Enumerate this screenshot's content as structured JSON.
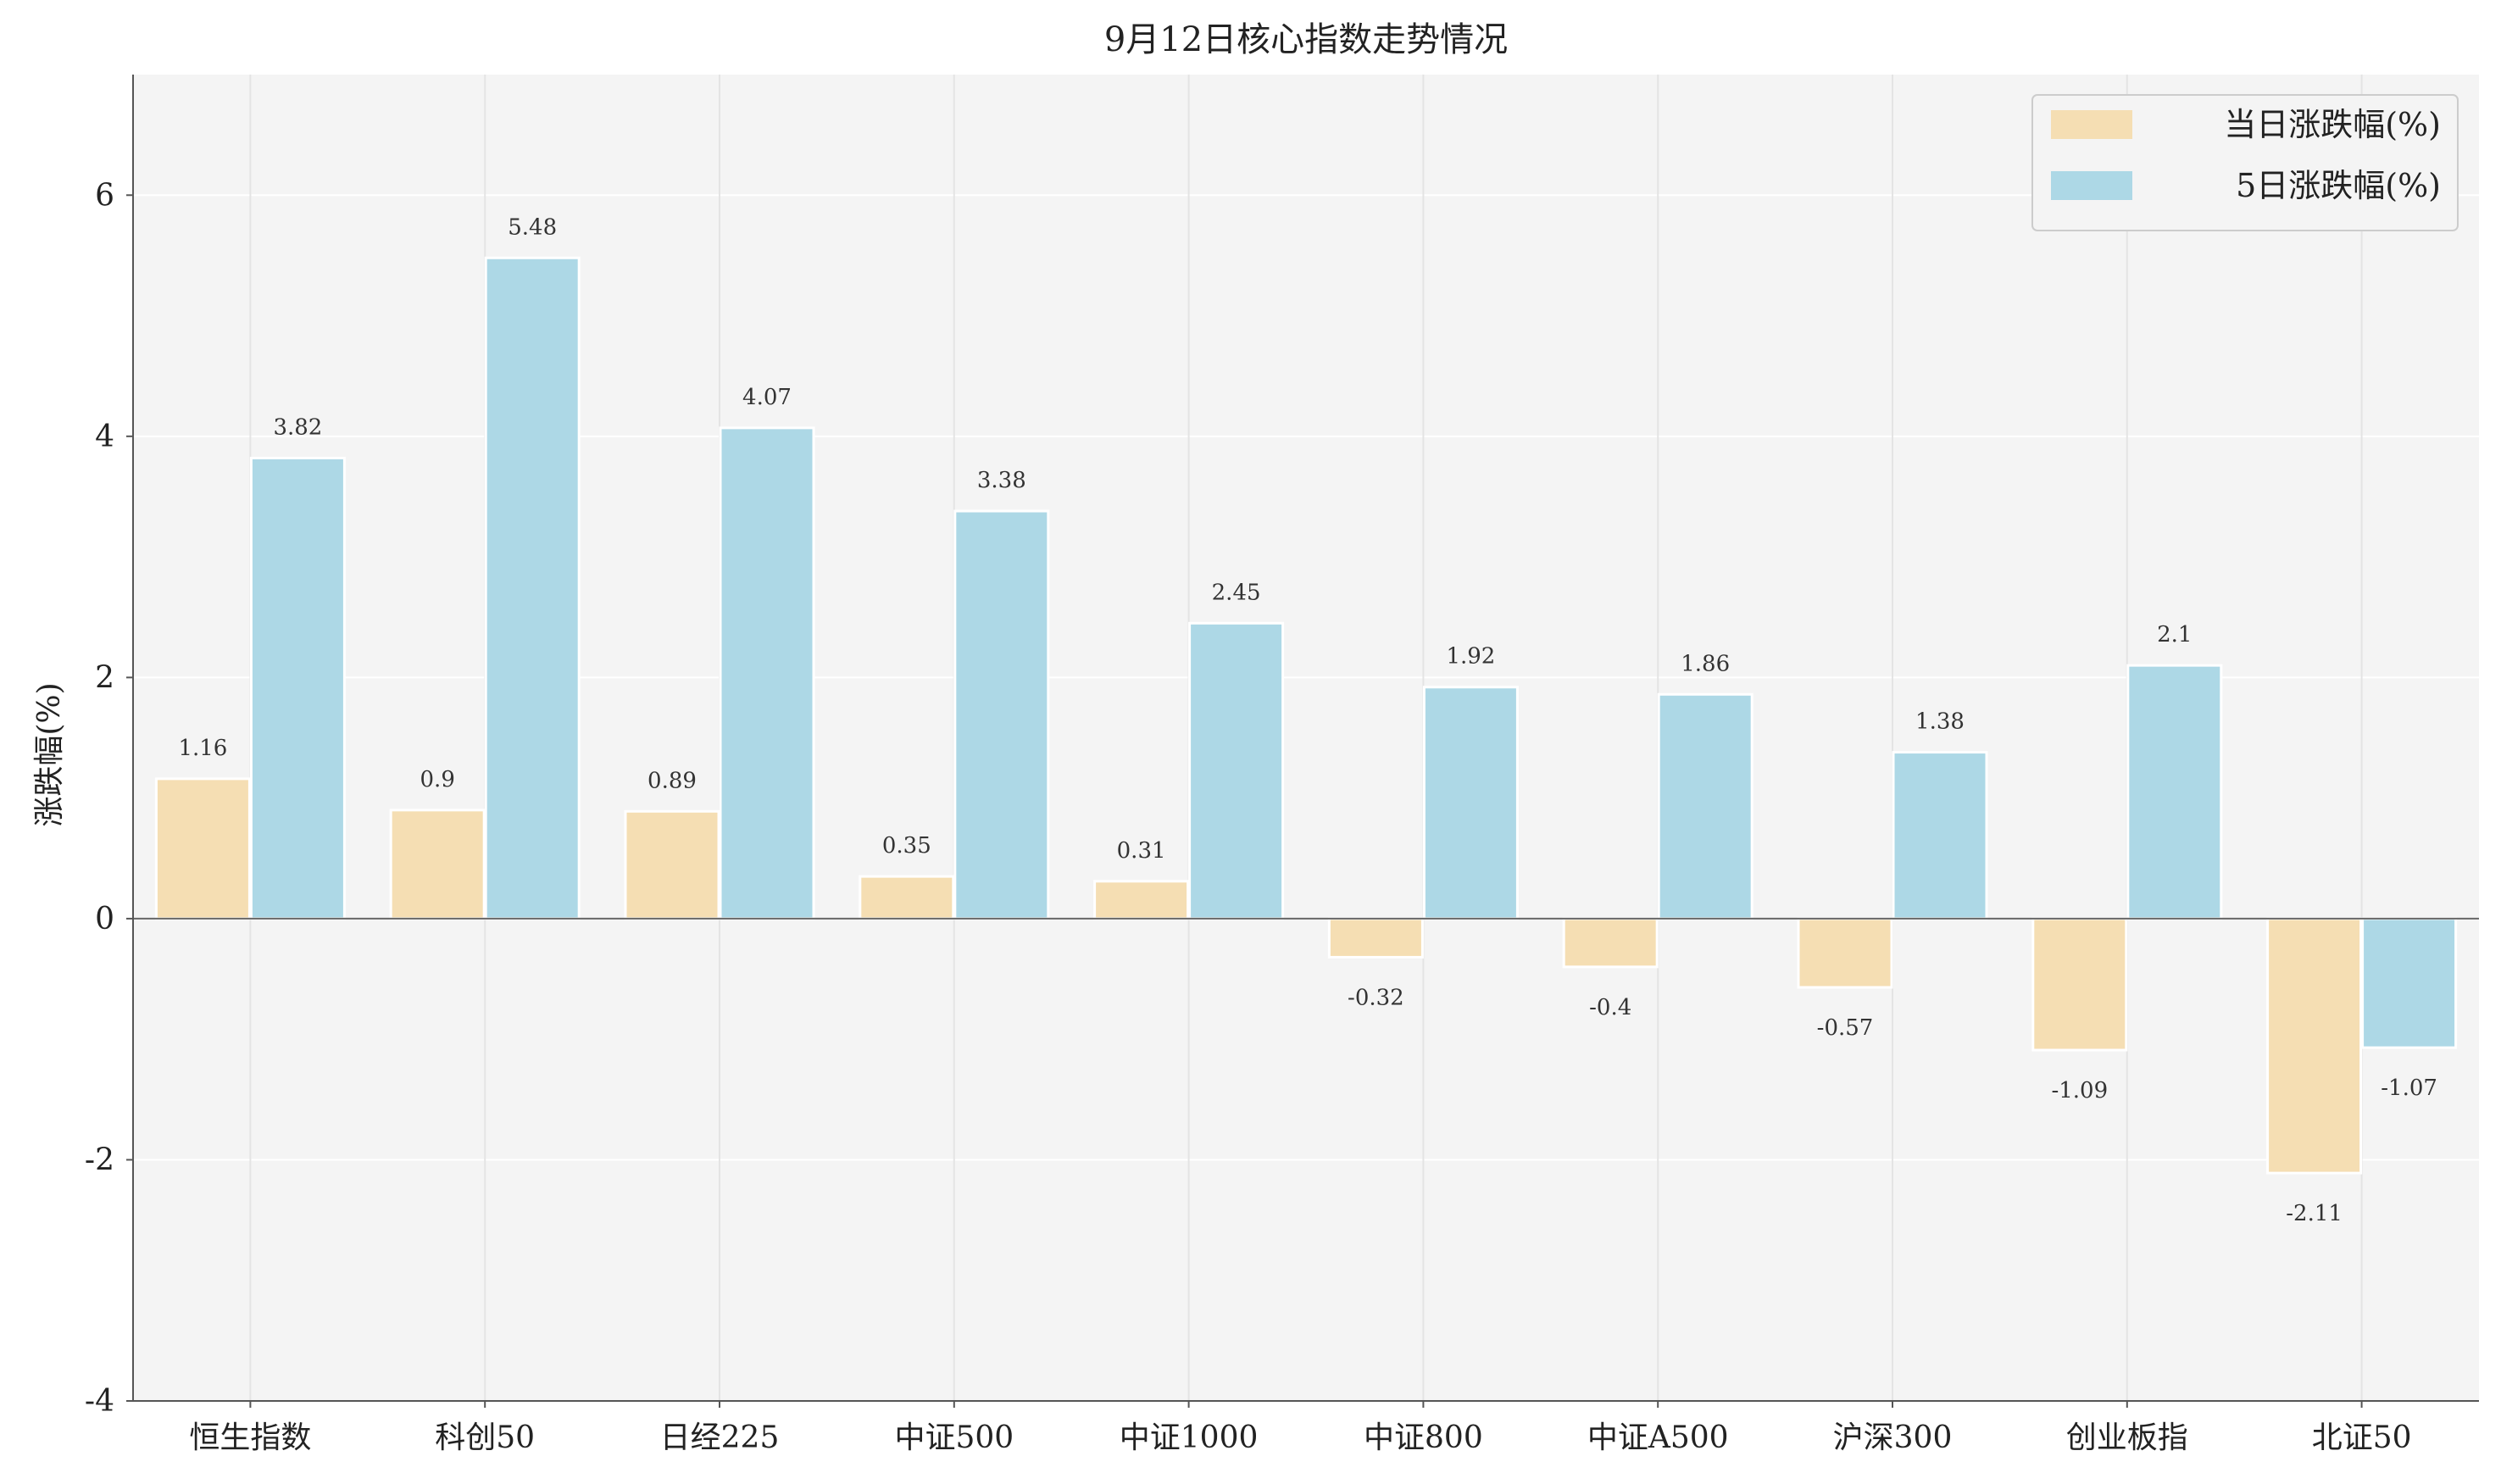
{
  "chart_data": {
    "type": "bar",
    "title": "9月12日核心指数走势情况",
    "xlabel": "",
    "ylabel": "涨跌幅(%)",
    "ylim": [
      -4,
      7
    ],
    "yticks": [
      -4,
      -2,
      0,
      2,
      4,
      6
    ],
    "grid": true,
    "legend_position": "top-right",
    "categories": [
      "恒生指数",
      "科创50",
      "日经225",
      "中证500",
      "中证1000",
      "中证800",
      "中证A500",
      "沪深300",
      "创业板指",
      "北证50"
    ],
    "series": [
      {
        "name": "当日涨跌幅(%)",
        "color": "#f5deb3",
        "values": [
          1.16,
          0.9,
          0.89,
          0.35,
          0.31,
          -0.32,
          -0.4,
          -0.57,
          -1.09,
          -2.11
        ]
      },
      {
        "name": "5日涨跌幅(%)",
        "color": "#add8e6",
        "values": [
          3.82,
          5.48,
          4.07,
          3.38,
          2.45,
          1.92,
          1.86,
          1.38,
          2.1,
          -1.07
        ]
      }
    ]
  }
}
